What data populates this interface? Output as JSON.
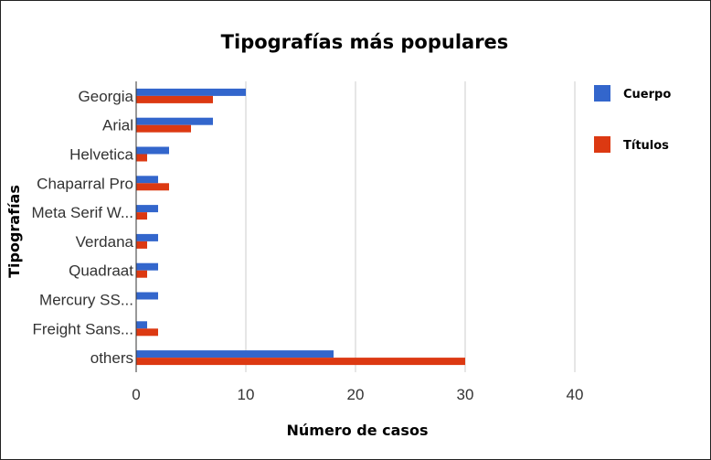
{
  "chart_data": {
    "type": "bar",
    "orientation": "horizontal",
    "title": "Tipografías más populares",
    "xlabel": "Número de casos",
    "ylabel": "Tipografías",
    "categories": [
      "Georgia",
      "Arial",
      "Helvetica",
      "Chaparral Pro",
      "Meta Serif W...",
      "Verdana",
      "Quadraat",
      "Mercury SS...",
      "Freight Sans...",
      "others"
    ],
    "series": [
      {
        "name": "Cuerpo",
        "color": "#3366cc",
        "values": [
          10,
          7,
          3,
          2,
          2,
          2,
          2,
          2,
          1,
          18
        ]
      },
      {
        "name": "Títulos",
        "color": "#dc3912",
        "values": [
          7,
          5,
          1,
          3,
          1,
          1,
          1,
          0,
          2,
          30
        ]
      }
    ],
    "xlim": [
      0,
      40
    ],
    "xticks": [
      0,
      10,
      20,
      30,
      40
    ],
    "grid": true,
    "legend_position": "right"
  }
}
